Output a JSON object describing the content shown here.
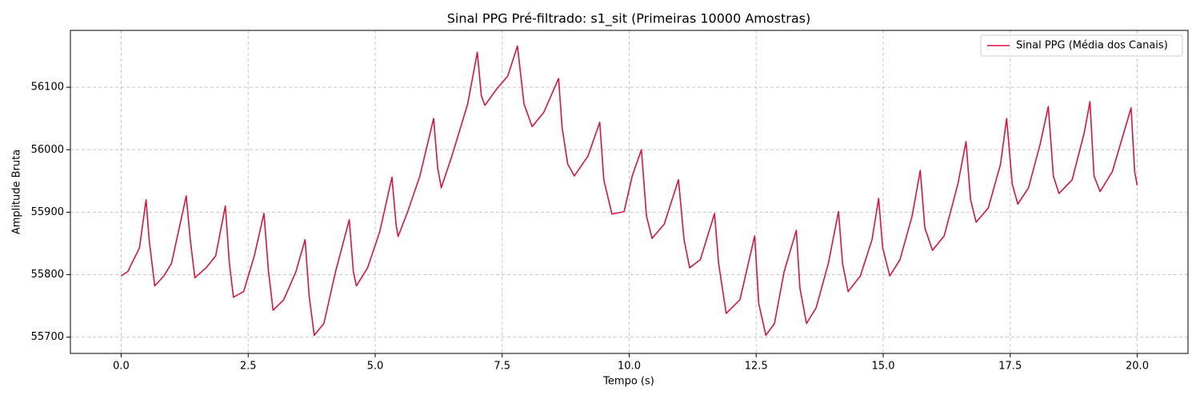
{
  "chart_data": {
    "type": "line",
    "title": "Sinal PPG Pré-filtrado: s1_sit (Primeiras 10000 Amostras)",
    "xlabel": "Tempo (s)",
    "ylabel": "Amplitude Bruta",
    "x": [
      0,
      0.13,
      0.36,
      0.49,
      0.55,
      0.66,
      0.84,
      0.99,
      1.28,
      1.36,
      1.45,
      1.67,
      1.86,
      2.05,
      2.13,
      2.21,
      2.41,
      2.62,
      2.81,
      2.9,
      2.99,
      3.2,
      3.44,
      3.62,
      3.7,
      3.8,
      3.99,
      4.22,
      4.49,
      4.57,
      4.63,
      4.85,
      5.09,
      5.33,
      5.41,
      5.45,
      5.64,
      5.88,
      6.15,
      6.23,
      6.3,
      6.51,
      6.82,
      7.01,
      7.09,
      7.16,
      7.38,
      7.61,
      7.8,
      7.93,
      8.09,
      8.32,
      8.61,
      8.68,
      8.79,
      8.92,
      9.19,
      9.42,
      9.5,
      9.66,
      9.9,
      10.06,
      10.24,
      10.34,
      10.45,
      10.69,
      10.97,
      11.08,
      11.19,
      11.4,
      11.68,
      11.76,
      11.91,
      12.18,
      12.47,
      12.55,
      12.69,
      12.86,
      13.05,
      13.29,
      13.36,
      13.49,
      13.68,
      13.92,
      14.12,
      14.2,
      14.31,
      14.55,
      14.78,
      14.91,
      14.99,
      15.13,
      15.33,
      15.57,
      15.73,
      15.82,
      15.97,
      16.2,
      16.47,
      16.63,
      16.72,
      16.83,
      17.07,
      17.31,
      17.43,
      17.54,
      17.65,
      17.86,
      18.09,
      18.25,
      18.35,
      18.46,
      18.72,
      18.96,
      19.07,
      19.15,
      19.27,
      19.51,
      19.67,
      19.88,
      19.95,
      20.0
    ],
    "series": [
      {
        "name": "Sinal PPG (Média dos Canais)",
        "color": "#dc143c",
        "values": [
          55798,
          55805,
          55843,
          55920,
          55856,
          55782,
          55798,
          55818,
          55926,
          55856,
          55795,
          55811,
          55830,
          55910,
          55818,
          55764,
          55773,
          55830,
          55898,
          55805,
          55743,
          55760,
          55805,
          55856,
          55766,
          55703,
          55722,
          55805,
          55888,
          55805,
          55782,
          55811,
          55869,
          55956,
          55881,
          55861,
          55901,
          55958,
          56050,
          55971,
          55939,
          55990,
          56073,
          56156,
          56086,
          56071,
          56096,
          56118,
          56166,
          56073,
          56037,
          56060,
          56114,
          56035,
          55977,
          55958,
          55990,
          56044,
          55952,
          55897,
          55901,
          55958,
          56000,
          55894,
          55858,
          55881,
          55952,
          55856,
          55811,
          55824,
          55898,
          55818,
          55738,
          55760,
          55862,
          55754,
          55703,
          55722,
          55805,
          55871,
          55779,
          55722,
          55747,
          55818,
          55901,
          55818,
          55773,
          55798,
          55856,
          55922,
          55843,
          55798,
          55824,
          55894,
          55967,
          55875,
          55839,
          55862,
          55945,
          56013,
          55920,
          55884,
          55907,
          55977,
          56050,
          55945,
          55913,
          55939,
          56009,
          56069,
          55958,
          55930,
          55952,
          56028,
          56077,
          55958,
          55933,
          55965,
          56009,
          56067,
          55965,
          55943
        ]
      }
    ],
    "xlim": [
      -1,
      21
    ],
    "xticks": [
      {
        "value": 0,
        "label": "0.0"
      },
      2.5,
      {
        "value": 5,
        "label": "5.0"
      },
      7.5,
      {
        "value": 10,
        "label": "10.0"
      },
      12.5,
      {
        "value": 15,
        "label": "15.0"
      },
      17.5,
      {
        "value": 20,
        "label": "20.0"
      }
    ],
    "ylim": [
      55674,
      56191
    ],
    "yticks": [
      55700,
      55800,
      55900,
      56000,
      56100
    ],
    "grid": true,
    "legend": "upper right"
  }
}
